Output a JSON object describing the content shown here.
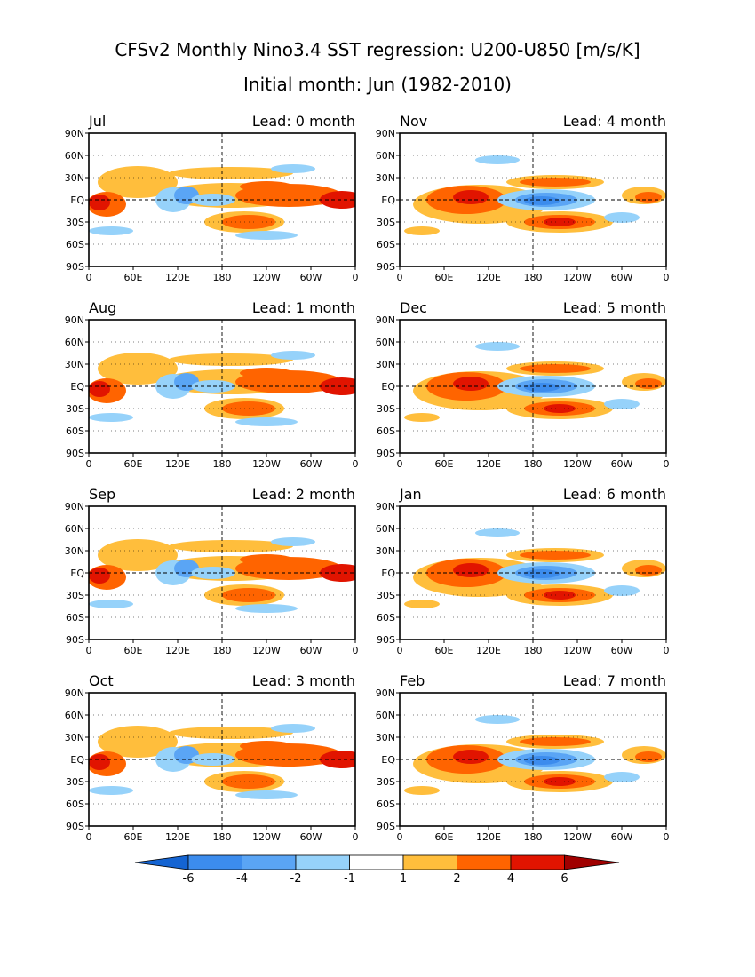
{
  "title_line1": "CFSv2 Monthly Nino3.4 SST regression: U200-U850 [m/s/K]",
  "title_line2": "Initial month: Jun (1982-2010)",
  "lat_ticks": [
    "90N",
    "60N",
    "30N",
    "EQ",
    "30S",
    "60S",
    "90S"
  ],
  "lon_ticks": [
    "0",
    "60E",
    "120E",
    "180",
    "120W",
    "60W",
    "0"
  ],
  "panels": [
    {
      "month": "Jul",
      "lead": "Lead: 0 month",
      "pattern": 0
    },
    {
      "month": "Nov",
      "lead": "Lead: 4 month",
      "pattern": 1
    },
    {
      "month": "Aug",
      "lead": "Lead: 1 month",
      "pattern": 0
    },
    {
      "month": "Dec",
      "lead": "Lead: 5 month",
      "pattern": 1
    },
    {
      "month": "Sep",
      "lead": "Lead: 2 month",
      "pattern": 0
    },
    {
      "month": "Jan",
      "lead": "Lead: 6 month",
      "pattern": 1
    },
    {
      "month": "Oct",
      "lead": "Lead: 3 month",
      "pattern": 0
    },
    {
      "month": "Feb",
      "lead": "Lead: 7 month",
      "pattern": 1
    }
  ],
  "colorbar": {
    "labels": [
      "-6",
      "-4",
      "-2",
      "-1",
      "1",
      "2",
      "4",
      "6"
    ],
    "colors": [
      "#1e64d2",
      "#3c8ced",
      "#5aa5f5",
      "#96d2fa",
      "#ffffff",
      "#ffbe3c",
      "#ff6400",
      "#e11400",
      "#a00000",
      "#1464d2"
    ]
  }
}
